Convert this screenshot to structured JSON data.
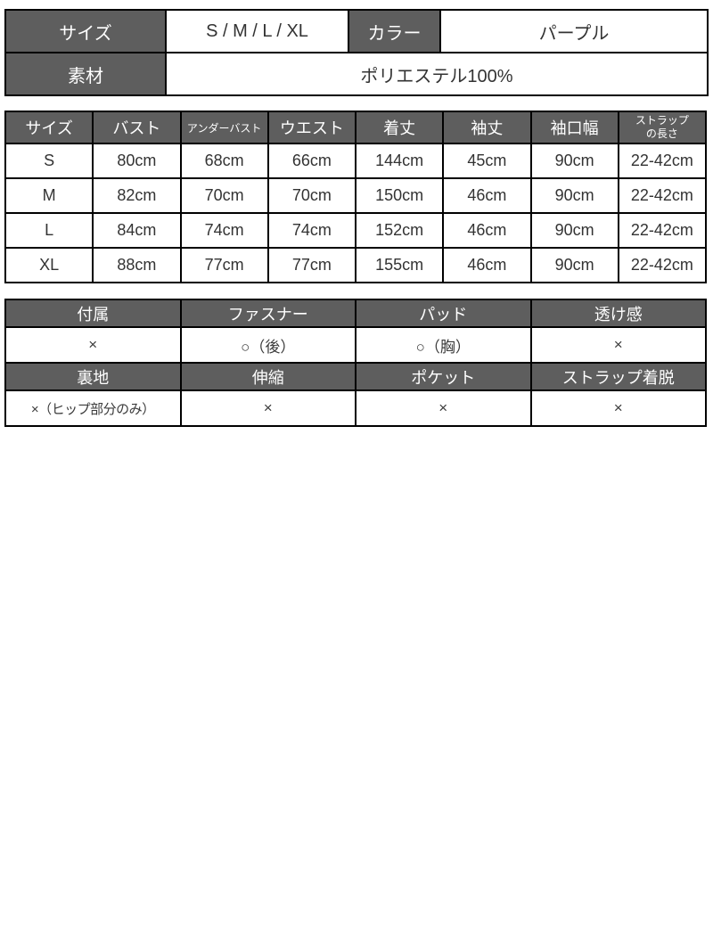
{
  "colors": {
    "header_bg": "#5e5e5e",
    "header_text": "#ffffff",
    "border": "#000000",
    "cell_text": "#333333"
  },
  "info": {
    "size_label": "サイズ",
    "size_value": "S / M / L / XL",
    "color_label": "カラー",
    "color_value": "パープル",
    "material_label": "素材",
    "material_value": "ポリエステル100%"
  },
  "measurements": {
    "headers": [
      "サイズ",
      "バスト",
      "アンダーバスト",
      "ウエスト",
      "着丈",
      "袖丈",
      "袖口幅",
      "ストラップ\nの長さ"
    ],
    "rows": [
      [
        "S",
        "80cm",
        "68cm",
        "66cm",
        "144cm",
        "45cm",
        "90cm",
        "22-42cm"
      ],
      [
        "M",
        "82cm",
        "70cm",
        "70cm",
        "150cm",
        "46cm",
        "90cm",
        "22-42cm"
      ],
      [
        "L",
        "84cm",
        "74cm",
        "74cm",
        "152cm",
        "46cm",
        "90cm",
        "22-42cm"
      ],
      [
        "XL",
        "88cm",
        "77cm",
        "77cm",
        "155cm",
        "46cm",
        "90cm",
        "22-42cm"
      ]
    ]
  },
  "features": {
    "row1_headers": [
      "付属",
      "ファスナー",
      "パッド",
      "透け感"
    ],
    "row1_values": [
      "×",
      "○（後）",
      "○（胸）",
      "×"
    ],
    "row2_headers": [
      "裏地",
      "伸縮",
      "ポケット",
      "ストラップ着脱"
    ],
    "row2_values": [
      "×（ヒップ部分のみ）",
      "×",
      "×",
      "×"
    ]
  }
}
